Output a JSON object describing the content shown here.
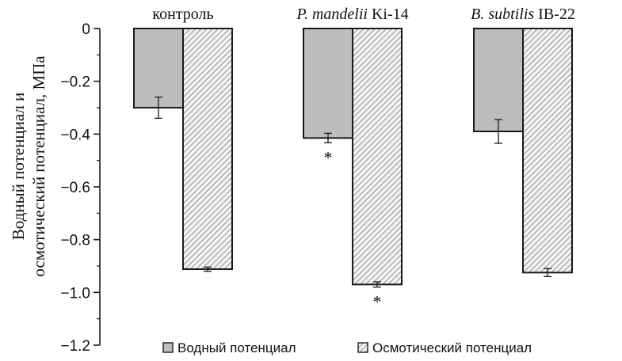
{
  "chart_data": {
    "type": "bar",
    "categories": [
      {
        "label_italic": "",
        "label_plain": "контроль"
      },
      {
        "label_italic": "P. mandelii",
        "label_plain": " Ki-14"
      },
      {
        "label_italic": "B. subtilis",
        "label_plain": " IB-22"
      }
    ],
    "series": [
      {
        "name": "Водный потенциал",
        "fill": "solid-gray",
        "values": [
          -0.3,
          -0.415,
          -0.39
        ],
        "errors": [
          0.04,
          0.018,
          0.045
        ],
        "annotations": [
          "",
          "*",
          ""
        ]
      },
      {
        "name": "Осмотический потенциал",
        "fill": "hatched",
        "values": [
          -0.912,
          -0.97,
          -0.925
        ],
        "errors": [
          0.008,
          0.01,
          0.015
        ],
        "annotations": [
          "",
          "*",
          ""
        ]
      }
    ],
    "ylabel_lines": [
      "Водный потенциал и",
      "осмотический потенциал,  МПа"
    ],
    "yticks": [
      0,
      -0.2,
      -0.4,
      -0.6,
      -0.8,
      -1.0,
      -1.2
    ],
    "ytick_labels": [
      "0",
      "−0.2",
      "−0.4",
      "−0.6",
      "−0.8",
      "−1.0",
      "−1.2"
    ],
    "ylim": [
      -1.2,
      0
    ],
    "legend_position": "bottom",
    "grid": false,
    "colors": {
      "solid": "#bdbdbd",
      "hatch_bg": "#f2f2f2",
      "hatch_line": "#7a7a7a",
      "stroke": "#1a1a1a"
    }
  }
}
